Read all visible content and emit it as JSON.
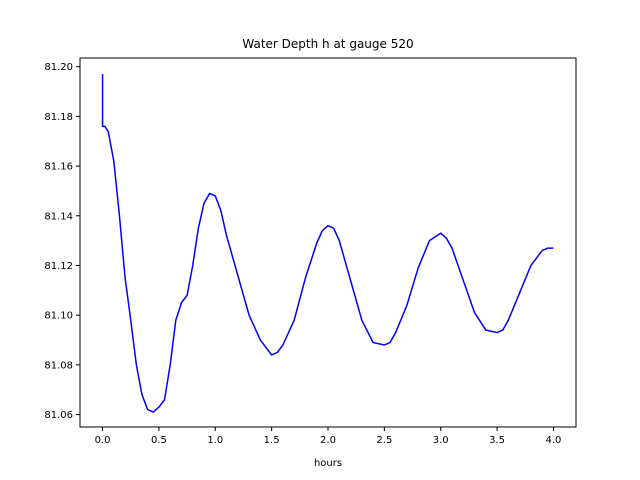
{
  "chart_data": {
    "type": "line",
    "title": "Water Depth h at gauge 520",
    "xlabel": "hours",
    "ylabel": "",
    "xlim": [
      -0.2,
      4.2
    ],
    "ylim": [
      81.055,
      81.2035
    ],
    "x_ticks": [
      0.0,
      0.5,
      1.0,
      1.5,
      2.0,
      2.5,
      3.0,
      3.5,
      4.0
    ],
    "x_tick_labels": [
      "0.0",
      "0.5",
      "1.0",
      "1.5",
      "2.0",
      "2.5",
      "3.0",
      "3.5",
      "4.0"
    ],
    "y_ticks": [
      81.06,
      81.08,
      81.1,
      81.12,
      81.14,
      81.16,
      81.18,
      81.2
    ],
    "y_tick_labels": [
      "81.06",
      "81.08",
      "81.10",
      "81.12",
      "81.14",
      "81.16",
      "81.18",
      "81.20"
    ],
    "grid": false,
    "line_color": "#0000ff",
    "series": [
      {
        "x": [
          0.0,
          0.0,
          0.02,
          0.05,
          0.1,
          0.15,
          0.2,
          0.25,
          0.3,
          0.35,
          0.4,
          0.45,
          0.5,
          0.55,
          0.6,
          0.65,
          0.7,
          0.75,
          0.8,
          0.85,
          0.9,
          0.95,
          1.0,
          1.05,
          1.1,
          1.2,
          1.3,
          1.4,
          1.5,
          1.55,
          1.6,
          1.7,
          1.8,
          1.9,
          1.95,
          2.0,
          2.05,
          2.1,
          2.2,
          2.3,
          2.4,
          2.5,
          2.55,
          2.6,
          2.7,
          2.8,
          2.9,
          3.0,
          3.05,
          3.1,
          3.2,
          3.3,
          3.4,
          3.5,
          3.55,
          3.6,
          3.7,
          3.8,
          3.9,
          3.95,
          4.0
        ],
        "y": [
          81.197,
          81.176,
          81.176,
          81.174,
          81.162,
          81.14,
          81.115,
          81.098,
          81.08,
          81.068,
          81.062,
          81.061,
          81.063,
          81.066,
          81.08,
          81.098,
          81.105,
          81.108,
          81.12,
          81.135,
          81.145,
          81.149,
          81.148,
          81.142,
          81.132,
          81.116,
          81.1,
          81.09,
          81.084,
          81.085,
          81.088,
          81.098,
          81.115,
          81.129,
          81.134,
          81.136,
          81.135,
          81.13,
          81.114,
          81.098,
          81.089,
          81.088,
          81.089,
          81.093,
          81.104,
          81.119,
          81.13,
          81.133,
          81.131,
          81.127,
          81.114,
          81.101,
          81.094,
          81.093,
          81.094,
          81.098,
          81.109,
          81.12,
          81.126,
          81.127,
          81.127
        ]
      }
    ]
  }
}
